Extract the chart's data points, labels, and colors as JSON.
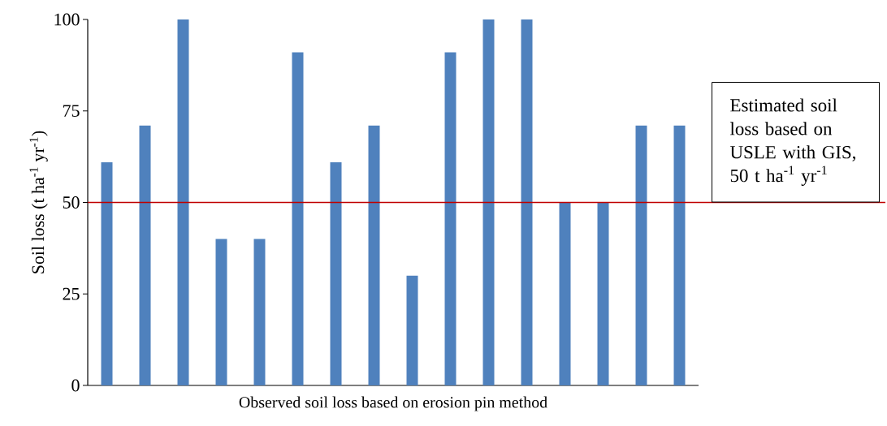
{
  "chart_data": {
    "type": "bar",
    "ylabel": "Soil loss (t ha$^{-1}$ yr$^{-1}$)",
    "xlabel": "Observed soil loss based on erosion pin method",
    "categories": [
      null,
      null,
      null,
      null,
      null,
      null,
      null,
      null,
      null,
      null,
      null,
      null,
      null,
      null,
      null,
      null
    ],
    "values": [
      61,
      71,
      100,
      40,
      40,
      91,
      61,
      71,
      30,
      91,
      100,
      100,
      50,
      50,
      71,
      71
    ],
    "color": "#4f81bd",
    "ylim": [
      0,
      100
    ],
    "yticks": [
      0,
      25,
      50,
      75,
      100
    ],
    "grid": false,
    "ref_lines": [
      {
        "axis": "y",
        "value": 50,
        "label": "Estimated soil loss based on USLE with GIS, 50 t ha$^{-1}$ yr$^{-1}$",
        "color": "#c00000"
      }
    ]
  }
}
